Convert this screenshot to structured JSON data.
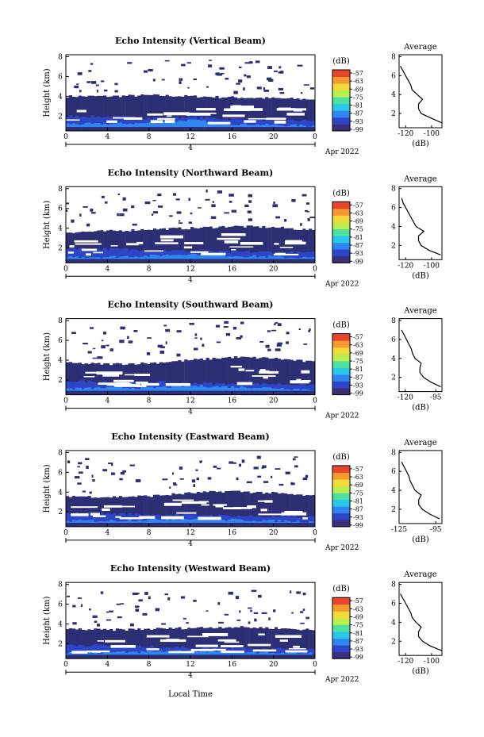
{
  "figure": {
    "xlabel": "Local Time",
    "date_label": "Apr 2022",
    "day_label": "4",
    "ylabel": "Height (km)",
    "avg_title": "Average",
    "avg_xlabel": "(dB)",
    "cb_unit": "(dB)"
  },
  "colorbar": {
    "labels": [
      "-57",
      "-63",
      "-69",
      "-75",
      "-81",
      "-87",
      "-93",
      "-99"
    ],
    "colors": [
      "#3b2f7a",
      "#2f45c8",
      "#2f86f0",
      "#29c8e8",
      "#4fe0a0",
      "#b8ee4e",
      "#f4d93a",
      "#f59a30",
      "#e6452b"
    ]
  },
  "chart_data": [
    {
      "type": "heatmap",
      "title": "Echo Intensity (Vertical Beam)",
      "x_ticks": [
        "0",
        "4",
        "8",
        "12",
        "16",
        "20",
        "0"
      ],
      "y_ticks": [
        "2",
        "4",
        "6",
        "8"
      ],
      "xlim": [
        0,
        24
      ],
      "ylim": [
        0.5,
        8.2
      ],
      "value_range_db": [
        -99,
        -57
      ],
      "layers": [
        {
          "top_km": [
            4.0,
            4.0,
            4.1,
            4.0,
            3.9,
            3.8,
            3.7
          ],
          "base_km": 0.5,
          "color": "#2d2f75"
        },
        {
          "top_km": [
            2.0,
            1.9,
            1.8,
            1.9,
            1.7,
            1.6,
            1.5
          ],
          "base_km": 0.9,
          "color": "#2f45c8"
        },
        {
          "top_km": [
            1.2,
            1.2,
            1.3,
            1.6,
            1.2,
            1.1,
            1.0
          ],
          "base_km": 0.9,
          "color": "#2f86f0"
        }
      ],
      "average": {
        "xlim": [
          -125,
          -92
        ],
        "x_ticks": [
          "-120",
          "-100"
        ],
        "y_ticks": [
          "2",
          "4",
          "6",
          "8"
        ],
        "height_km": [
          1.0,
          1.5,
          2.0,
          2.5,
          3.0,
          3.5,
          4.0,
          4.5,
          5.0,
          5.5,
          6.0,
          6.5,
          7.0
        ],
        "avg_db": [
          -92,
          -100,
          -108,
          -110,
          -110,
          -107,
          -111,
          -115,
          -116,
          -118,
          -120,
          -122,
          -124
        ]
      }
    },
    {
      "type": "heatmap",
      "title": "Echo Intensity (Northward Beam)",
      "x_ticks": [
        "0",
        "4",
        "8",
        "12",
        "16",
        "20",
        "0"
      ],
      "y_ticks": [
        "2",
        "4",
        "6",
        "8"
      ],
      "xlim": [
        0,
        24
      ],
      "ylim": [
        0.5,
        8.2
      ],
      "value_range_db": [
        -99,
        -57
      ],
      "layers": [
        {
          "top_km": [
            3.6,
            3.7,
            3.9,
            4.0,
            4.2,
            4.1,
            3.8
          ],
          "base_km": 0.5,
          "color": "#2d2f75"
        },
        {
          "top_km": [
            2.0,
            1.9,
            1.8,
            1.7,
            1.6,
            1.6,
            1.5
          ],
          "base_km": 0.9,
          "color": "#2f45c8"
        },
        {
          "top_km": [
            1.1,
            1.1,
            1.2,
            1.4,
            1.2,
            1.1,
            1.0
          ],
          "base_km": 0.9,
          "color": "#2f86f0"
        }
      ],
      "average": {
        "xlim": [
          -125,
          -92
        ],
        "x_ticks": [
          "-120",
          "-100"
        ],
        "y_ticks": [
          "2",
          "4",
          "6",
          "8"
        ],
        "height_km": [
          1.0,
          1.5,
          2.0,
          2.5,
          3.0,
          3.5,
          4.0,
          4.5,
          5.0,
          5.5,
          6.0,
          6.5,
          7.0
        ],
        "avg_db": [
          -93,
          -102,
          -108,
          -110,
          -110,
          -106,
          -112,
          -114,
          -116,
          -118,
          -120,
          -122,
          -123
        ]
      }
    },
    {
      "type": "heatmap",
      "title": "Echo Intensity (Southward Beam)",
      "x_ticks": [
        "0",
        "4",
        "8",
        "12",
        "16",
        "20",
        "0"
      ],
      "y_ticks": [
        "2",
        "4",
        "6",
        "8"
      ],
      "xlim": [
        0,
        24
      ],
      "ylim": [
        0.5,
        8.2
      ],
      "value_range_db": [
        -99,
        -57
      ],
      "layers": [
        {
          "top_km": [
            3.7,
            3.6,
            3.7,
            4.0,
            4.3,
            4.2,
            3.8
          ],
          "base_km": 0.5,
          "color": "#2d2f75"
        },
        {
          "top_km": [
            1.9,
            1.8,
            1.8,
            1.7,
            1.6,
            1.6,
            1.5
          ],
          "base_km": 0.9,
          "color": "#2f45c8"
        },
        {
          "top_km": [
            1.1,
            1.2,
            1.2,
            1.4,
            1.3,
            1.2,
            1.0
          ],
          "base_km": 0.9,
          "color": "#2f86f0"
        }
      ],
      "average": {
        "xlim": [
          -125,
          -90
        ],
        "x_ticks": [
          "-120",
          "-95"
        ],
        "y_ticks": [
          "2",
          "4",
          "6",
          "8"
        ],
        "height_km": [
          1.0,
          1.5,
          2.0,
          2.5,
          3.0,
          3.5,
          4.0,
          4.5,
          5.0,
          5.5,
          6.0,
          6.5,
          7.0
        ],
        "avg_db": [
          -91,
          -99,
          -105,
          -108,
          -108,
          -107,
          -112,
          -114,
          -115,
          -117,
          -119,
          -121,
          -123
        ]
      }
    },
    {
      "type": "heatmap",
      "title": "Echo Intensity (Eastward Beam)",
      "x_ticks": [
        "0",
        "4",
        "8",
        "12",
        "16",
        "20",
        "0"
      ],
      "y_ticks": [
        "2",
        "4",
        "6",
        "8"
      ],
      "xlim": [
        0,
        24
      ],
      "ylim": [
        0.5,
        8.2
      ],
      "value_range_db": [
        -99,
        -57
      ],
      "layers": [
        {
          "top_km": [
            3.6,
            3.5,
            3.6,
            3.9,
            4.1,
            3.9,
            3.6
          ],
          "base_km": 0.5,
          "color": "#2d2f75"
        },
        {
          "top_km": [
            1.9,
            1.8,
            1.7,
            1.7,
            1.6,
            1.5,
            1.5
          ],
          "base_km": 0.9,
          "color": "#2f45c8"
        },
        {
          "top_km": [
            1.1,
            1.1,
            1.2,
            1.3,
            1.2,
            1.1,
            1.0
          ],
          "base_km": 0.9,
          "color": "#2f86f0"
        }
      ],
      "average": {
        "xlim": [
          -125,
          -90
        ],
        "x_ticks": [
          "-125",
          "-95"
        ],
        "y_ticks": [
          "2",
          "4",
          "6",
          "8"
        ],
        "height_km": [
          1.0,
          1.5,
          2.0,
          2.5,
          3.0,
          3.5,
          4.0,
          4.5,
          5.0,
          5.5,
          6.0,
          6.5,
          7.0
        ],
        "avg_db": [
          -92,
          -100,
          -106,
          -109,
          -109,
          -107,
          -112,
          -114,
          -116,
          -117,
          -119,
          -121,
          -123
        ]
      }
    },
    {
      "type": "heatmap",
      "title": "Echo Intensity (Westward Beam)",
      "x_ticks": [
        "0",
        "4",
        "8",
        "12",
        "16",
        "20",
        "0"
      ],
      "y_ticks": [
        "2",
        "4",
        "6",
        "8"
      ],
      "xlim": [
        0,
        24
      ],
      "ylim": [
        0.5,
        8.2
      ],
      "value_range_db": [
        -99,
        -57
      ],
      "layers": [
        {
          "top_km": [
            3.5,
            3.4,
            3.5,
            3.6,
            3.7,
            3.6,
            3.4
          ],
          "base_km": 0.5,
          "color": "#2d2f75"
        },
        {
          "top_km": [
            1.9,
            1.8,
            1.7,
            1.6,
            1.6,
            1.5,
            1.5
          ],
          "base_km": 0.9,
          "color": "#2f45c8"
        },
        {
          "top_km": [
            1.1,
            1.1,
            1.2,
            1.3,
            1.2,
            1.1,
            1.0
          ],
          "base_km": 0.9,
          "color": "#2f86f0"
        }
      ],
      "average": {
        "xlim": [
          -125,
          -92
        ],
        "x_ticks": [
          "-120",
          "-100"
        ],
        "y_ticks": [
          "2",
          "4",
          "6",
          "8"
        ],
        "height_km": [
          1.0,
          1.5,
          2.0,
          2.5,
          3.0,
          3.5,
          4.0,
          4.5,
          5.0,
          5.5,
          6.0,
          6.5,
          7.0
        ],
        "avg_db": [
          -92,
          -101,
          -107,
          -110,
          -110,
          -108,
          -112,
          -115,
          -116,
          -118,
          -120,
          -122,
          -124
        ]
      }
    }
  ]
}
